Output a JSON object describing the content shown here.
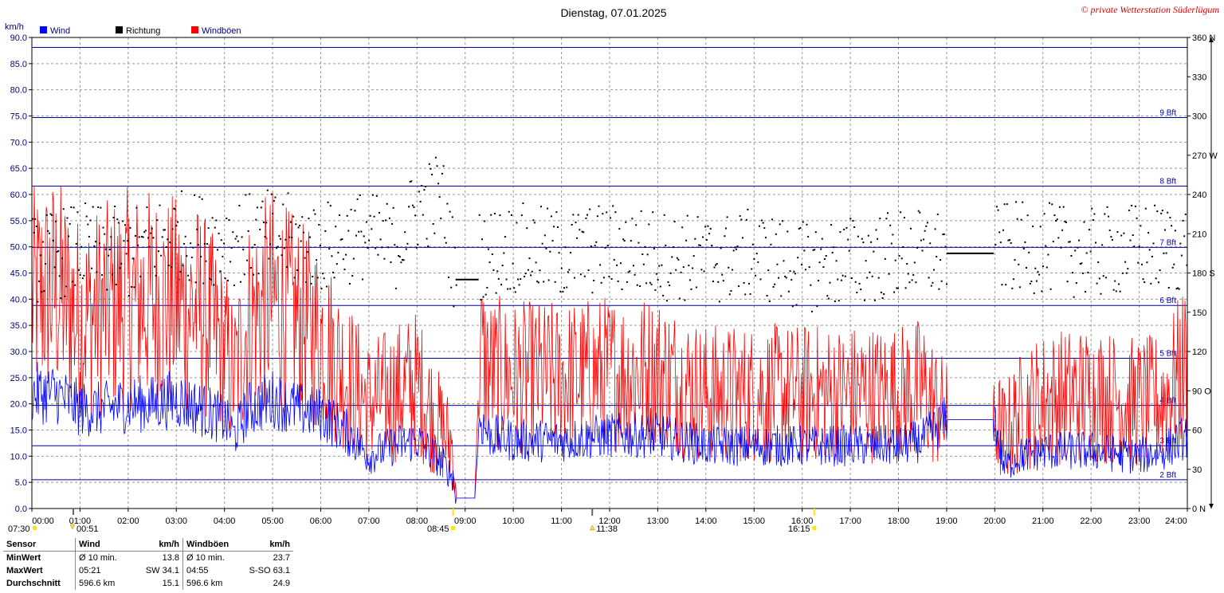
{
  "title": "Dienstag, 07.01.2025",
  "copyright": "© private Wetterstation Süderlügum",
  "chart_data": {
    "type": "line",
    "left_axis": {
      "unit": "km/h",
      "min": 0,
      "max": 90,
      "ticks": [
        "0.0",
        "5.0",
        "10.0",
        "15.0",
        "20.0",
        "25.0",
        "30.0",
        "35.0",
        "40.0",
        "45.0",
        "50.0",
        "55.0",
        "60.0",
        "65.0",
        "70.0",
        "75.0",
        "80.0",
        "85.0",
        "90.0"
      ]
    },
    "right_axis": {
      "min": 0,
      "max": 360,
      "ticks": [
        "0 N",
        "30",
        "60",
        "90 O",
        "120",
        "150",
        "180 S",
        "210",
        "240",
        "270 W",
        "300",
        "330",
        "360 N"
      ]
    },
    "x_ticks": [
      "00:00",
      "01:00",
      "02:00",
      "03:00",
      "04:00",
      "05:00",
      "06:00",
      "07:00",
      "08:00",
      "09:00",
      "10:00",
      "11:00",
      "12:00",
      "13:00",
      "14:00",
      "15:00",
      "16:00",
      "17:00",
      "18:00",
      "19:00",
      "20:00",
      "21:00",
      "22:00",
      "23:00",
      "24:00"
    ],
    "legend": [
      {
        "name": "Wind",
        "color": "#0000ff"
      },
      {
        "name": "Richtung",
        "color": "#000000"
      },
      {
        "name": "Windböen",
        "color": "#ff0000"
      }
    ],
    "beaufort_lines": [
      {
        "label": "2 Bft",
        "value": 5.5
      },
      {
        "label": "3 Bft",
        "value": 12
      },
      {
        "label": "4 Bft",
        "value": 19.7
      },
      {
        "label": "5 Bft",
        "value": 28.7
      },
      {
        "label": "6 Bft",
        "value": 38.8
      },
      {
        "label": "7 Bft",
        "value": 49.9
      },
      {
        "label": "8 Bft",
        "value": 61.6
      },
      {
        "label": "9 Bft",
        "value": 74.7
      },
      {
        "label": "",
        "value": 88.1
      }
    ],
    "series": [
      {
        "name": "Wind",
        "color": "#0000ff",
        "x": [
          0,
          0.5,
          1,
          1.5,
          2,
          2.5,
          3,
          3.5,
          4,
          4.2,
          4.5,
          5,
          5.5,
          6,
          6.5,
          7,
          7.5,
          8,
          8.5,
          8.75,
          8.8,
          9.2,
          9.3,
          9.5,
          10,
          11,
          12,
          13,
          14,
          15,
          16,
          17,
          18,
          18.5,
          19,
          19.5,
          20,
          20.2,
          20.5,
          21,
          22,
          23,
          23.5,
          24
        ],
        "values": [
          22,
          22,
          19,
          19,
          20,
          20,
          21,
          19,
          17,
          14,
          19,
          21,
          19,
          18,
          15,
          10,
          12,
          13,
          9,
          6,
          2,
          2,
          17,
          14,
          13,
          13,
          14,
          14,
          12,
          12,
          12,
          12,
          12,
          13,
          17,
          17,
          17,
          8,
          10,
          11,
          11,
          10,
          11,
          14
        ]
      },
      {
        "name": "Windböen",
        "color": "#ff0000",
        "x": [
          0,
          0.5,
          1,
          1.5,
          2,
          2.5,
          3,
          3.5,
          4,
          4.2,
          4.5,
          5,
          5.5,
          6,
          6.5,
          7,
          7.5,
          8,
          8.5,
          8.75,
          8.8,
          9.2,
          9.3,
          9.5,
          10,
          11,
          12,
          13,
          14,
          15,
          16,
          17,
          18,
          18.5,
          19,
          19.5,
          20,
          20.2,
          20.5,
          21,
          22,
          23,
          23.5,
          24
        ],
        "values": [
          40,
          42,
          36,
          38,
          40,
          40,
          39,
          38,
          30,
          25,
          36,
          40,
          36,
          33,
          26,
          20,
          22,
          24,
          15,
          12,
          2,
          2,
          30,
          26,
          25,
          25,
          26,
          26,
          22,
          22,
          22,
          22,
          22,
          23,
          17,
          17,
          17,
          14,
          18,
          21,
          22,
          20,
          21,
          28
        ]
      },
      {
        "name": "Richtung",
        "color": "#000000",
        "x": [
          0,
          1,
          2,
          3,
          4,
          5,
          6,
          6.9,
          7.5,
          8,
          8.5,
          8.8,
          9.3,
          10,
          11,
          12,
          13,
          14,
          15,
          16,
          17,
          18,
          18.9,
          19.8,
          20.2,
          21,
          22,
          23,
          24
        ],
        "values": [
          190,
          200,
          195,
          210,
          205,
          210,
          200,
          210,
          200,
          230,
          240,
          175,
          195,
          200,
          195,
          200,
          195,
          190,
          195,
          185,
          190,
          195,
          195,
          195,
          200,
          200,
          195,
          200,
          200
        ]
      }
    ]
  },
  "markers": {
    "sunrise_left": "07:30",
    "sunset_left": "00:51",
    "t0845": "08:45",
    "t1138": "11:38",
    "t1615": "16:15"
  },
  "stats": {
    "header": [
      "Sensor",
      "Wind",
      "km/h",
      "Windböen",
      "km/h"
    ],
    "rows": [
      [
        "MinWert",
        "Ø 10 min.",
        "13.8",
        "Ø 10 min.",
        "23.7"
      ],
      [
        "MaxWert",
        "05:21",
        "SW 34.1",
        "04:55",
        "S-SO 63.1"
      ],
      [
        "Durchschnitt",
        "596.6 km",
        "15.1",
        "596.6 km",
        "24.9"
      ]
    ]
  }
}
